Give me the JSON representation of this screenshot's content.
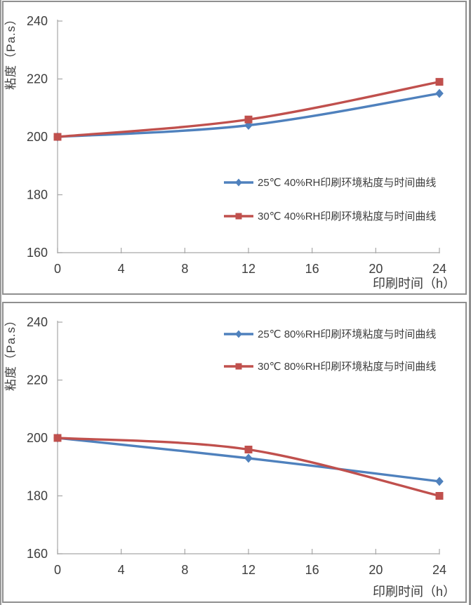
{
  "page": {
    "background": "#ffffff",
    "outer_border_color": "#9a9a9a",
    "panel_border_color": "#8f8f8f"
  },
  "colors": {
    "series_blue": "#4F81BD",
    "series_red": "#C0504D",
    "axis": "#a6a6a6",
    "text": "#3d3d3d"
  },
  "chart_data": [
    {
      "type": "line",
      "title": "",
      "xlabel": "印刷时间（h）",
      "ylabel": "粘度（Pa.s）",
      "x": [
        0,
        12,
        24
      ],
      "series": [
        {
          "name": "25℃ 40%RH印刷环境粘度与时间曲线",
          "values": [
            200,
            204,
            215
          ],
          "color": "#4F81BD",
          "marker": "diamond"
        },
        {
          "name": "30℃ 40%RH印刷环境粘度与时间曲线",
          "values": [
            200,
            206,
            219
          ],
          "color": "#C0504D",
          "marker": "square"
        }
      ],
      "xlim": [
        0,
        24
      ],
      "ylim": [
        160,
        240
      ],
      "xticks": [
        0,
        4,
        8,
        12,
        16,
        20,
        24
      ],
      "yticks": [
        160,
        180,
        200,
        220,
        240
      ],
      "grid": false,
      "smooth": true,
      "legend_position": "inside-right-middle",
      "legend_y": [
        257,
        305
      ]
    },
    {
      "type": "line",
      "title": "",
      "xlabel": "印刷时间（h）",
      "ylabel": "粘度（Pa.s）",
      "x": [
        0,
        12,
        24
      ],
      "series": [
        {
          "name": "25℃ 80%RH印刷环境粘度与时间曲线",
          "values": [
            200,
            193,
            185
          ],
          "color": "#4F81BD",
          "marker": "diamond"
        },
        {
          "name": "30℃ 80%RH印刷环境粘度与时间曲线",
          "values": [
            200,
            196,
            180
          ],
          "color": "#C0504D",
          "marker": "square"
        }
      ],
      "xlim": [
        0,
        24
      ],
      "ylim": [
        160,
        240
      ],
      "xticks": [
        0,
        4,
        8,
        12,
        16,
        20,
        24
      ],
      "yticks": [
        160,
        180,
        200,
        220,
        240
      ],
      "grid": false,
      "smooth": true,
      "legend_position": "inside-right-top",
      "legend_y": [
        44,
        90
      ]
    }
  ]
}
